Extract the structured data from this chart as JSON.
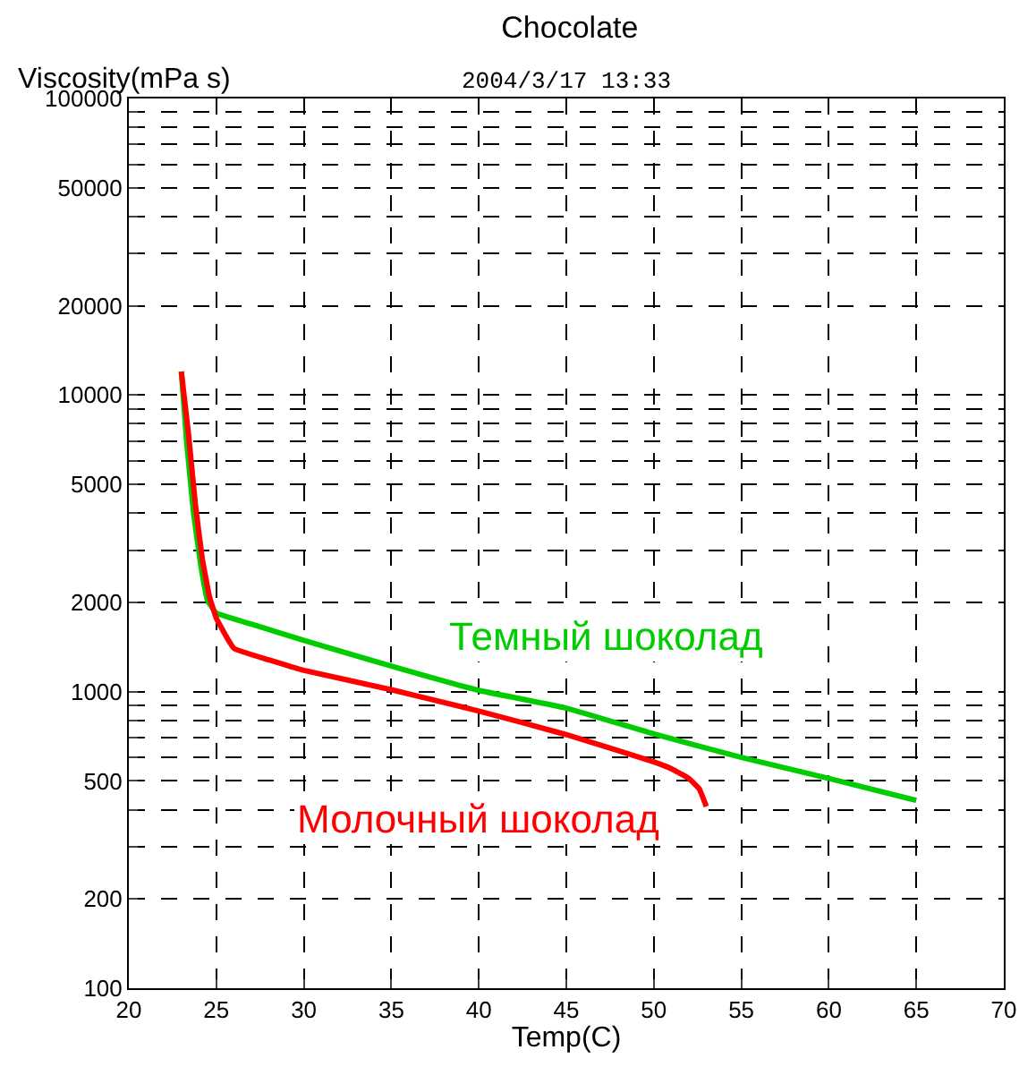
{
  "chart_data": {
    "type": "line",
    "title": "Chocolate",
    "subtitle": "2004/3/17 13:33",
    "xlabel": "Temp(C)",
    "ylabel": "Viscosity(mPa s)",
    "log": "y",
    "grid": true,
    "legend": false,
    "line_style": "solid",
    "xlim": [
      20,
      70
    ],
    "xticks": [
      20,
      25,
      30,
      35,
      40,
      45,
      50,
      55,
      60,
      65,
      70
    ],
    "ylim": [
      100,
      100000
    ],
    "yticks": [
      100,
      200,
      {
        "value": 300,
        "label": null
      },
      {
        "value": 400,
        "label": null
      },
      500,
      {
        "value": 600,
        "label": null
      },
      {
        "value": 700,
        "label": null
      },
      {
        "value": 800,
        "label": null
      },
      {
        "value": 900,
        "label": null
      },
      1000,
      2000,
      {
        "value": 3000,
        "label": null
      },
      {
        "value": 4000,
        "label": null
      },
      5000,
      {
        "value": 6000,
        "label": null
      },
      {
        "value": 7000,
        "label": null
      },
      {
        "value": 8000,
        "label": null
      },
      {
        "value": 9000,
        "label": null
      },
      10000,
      20000,
      {
        "value": 30000,
        "label": null
      },
      {
        "value": 40000,
        "label": null
      },
      50000,
      {
        "value": 60000,
        "label": null
      },
      {
        "value": 70000,
        "label": null
      },
      {
        "value": 80000,
        "label": null
      },
      {
        "value": 90000,
        "label": null
      },
      100000
    ],
    "series": [
      {
        "name": "Темный шоколад",
        "color": "#00cc00",
        "x": [
          23,
          23.3,
          23.7,
          24.1,
          24.5,
          25,
          27,
          30,
          35,
          40,
          45,
          50,
          55,
          60,
          65
        ],
        "values": [
          12000,
          7000,
          4000,
          2700,
          2030,
          1840,
          1690,
          1490,
          1220,
          1010,
          880,
          720,
          600,
          510,
          430
        ]
      },
      {
        "name": "Молочный шоколад",
        "color": "#ff0000",
        "x": [
          23,
          23.4,
          23.8,
          24.2,
          24.6,
          25,
          26,
          28,
          30,
          35,
          40,
          45,
          50,
          51,
          52,
          52.6,
          53
        ],
        "values": [
          12000,
          7500,
          4300,
          2800,
          2100,
          1770,
          1400,
          1280,
          1180,
          1015,
          860,
          716,
          580,
          550,
          510,
          470,
          410
        ]
      }
    ]
  }
}
